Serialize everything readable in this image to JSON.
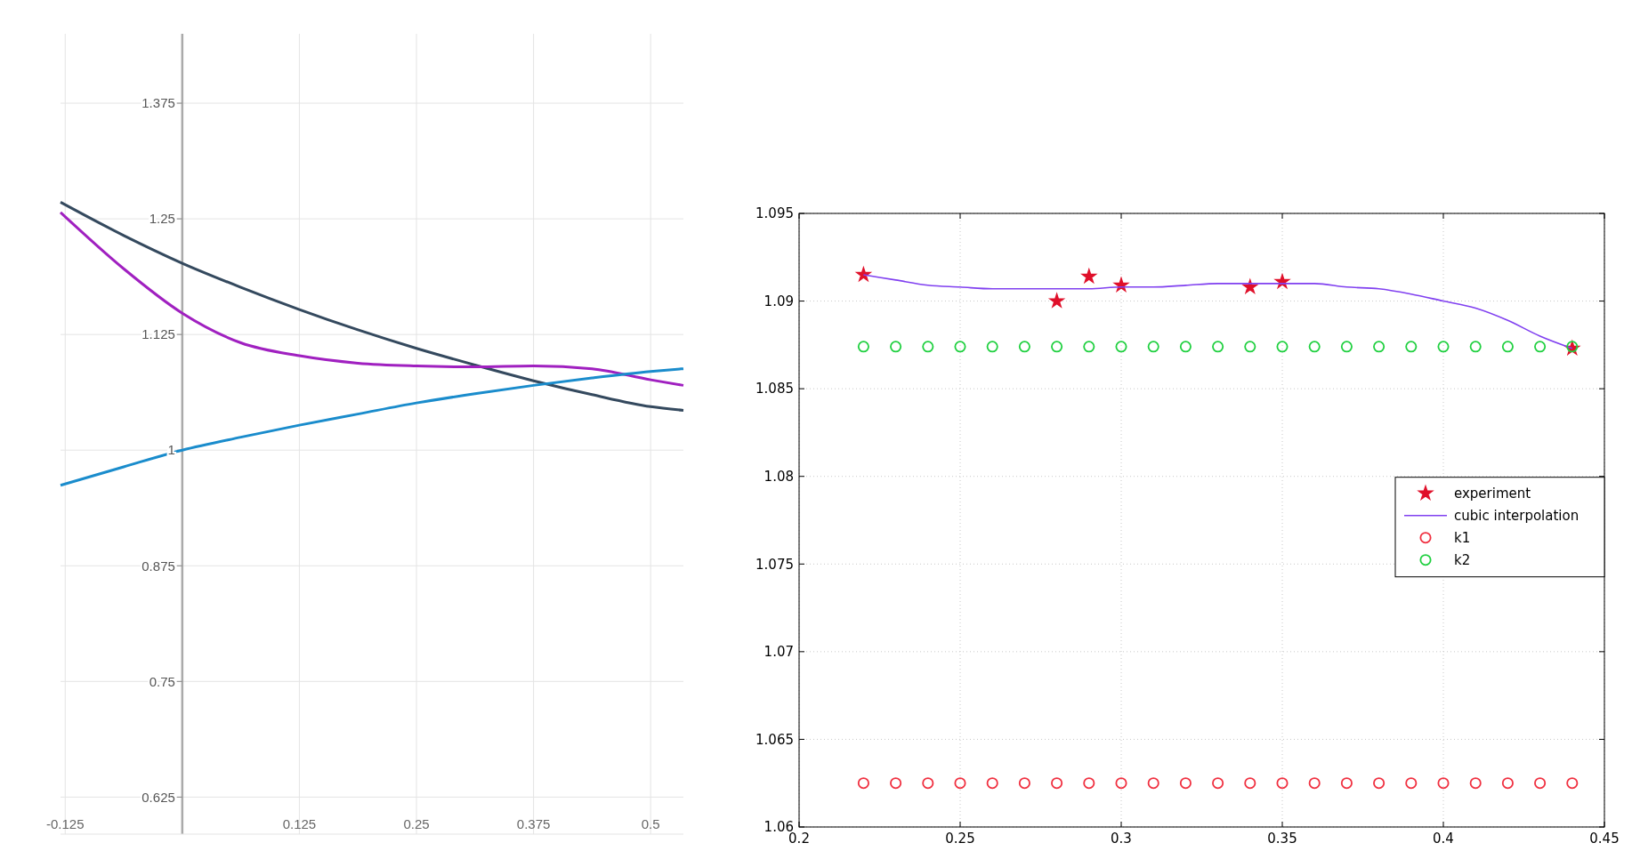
{
  "chart_data": [
    {
      "type": "line",
      "xlim": [
        -0.13,
        0.535
      ],
      "ylim": [
        0.585,
        1.45
      ],
      "xticks": [
        -0.125,
        0.125,
        0.25,
        0.375,
        0.5
      ],
      "yticks": [
        0.625,
        0.75,
        0.875,
        1,
        1.125,
        1.25,
        1.375
      ],
      "grid": true,
      "x": [
        -0.13,
        -0.0625,
        0,
        0.0625,
        0.125,
        0.1875,
        0.25,
        0.3125,
        0.375,
        0.4375,
        0.5,
        0.535
      ],
      "series": [
        {
          "color": "#34495e",
          "values": [
            1.268,
            1.232,
            1.202,
            1.176,
            1.152,
            1.13,
            1.11,
            1.092,
            1.075,
            1.06,
            1.047,
            1.043
          ]
        },
        {
          "color": "#a020c0",
          "values": [
            1.257,
            1.196,
            1.148,
            1.116,
            1.102,
            1.094,
            1.091,
            1.09,
            1.091,
            1.088,
            1.076,
            1.07
          ]
        },
        {
          "color": "#1a8ccc",
          "values": [
            0.962,
            0.982,
            1.0,
            1.014,
            1.027,
            1.039,
            1.051,
            1.061,
            1.07,
            1.078,
            1.085,
            1.088
          ]
        }
      ]
    },
    {
      "type": "scatter",
      "xlim": [
        0.2,
        0.45
      ],
      "ylim": [
        1.06,
        1.095
      ],
      "xticks": [
        0.2,
        0.25,
        0.3,
        0.35,
        0.4,
        0.45
      ],
      "yticks": [
        1.06,
        1.065,
        1.07,
        1.075,
        1.08,
        1.085,
        1.09,
        1.095
      ],
      "grid": true,
      "legend": "right",
      "x": [
        0.22,
        0.23,
        0.24,
        0.25,
        0.26,
        0.27,
        0.28,
        0.29,
        0.3,
        0.31,
        0.32,
        0.33,
        0.34,
        0.35,
        0.36,
        0.37,
        0.38,
        0.39,
        0.4,
        0.41,
        0.42,
        0.43,
        0.44
      ],
      "series": [
        {
          "name": "experiment",
          "marker": "star",
          "color": "#e0102a",
          "x": [
            0.22,
            0.28,
            0.29,
            0.3,
            0.34,
            0.35,
            0.44
          ],
          "values": [
            1.0915,
            1.09,
            1.0914,
            1.0909,
            1.0908,
            1.0911,
            1.0873
          ]
        },
        {
          "name": "cubic interpolation",
          "type": "line",
          "marker": "none",
          "color": "#8040f0",
          "values": [
            1.0915,
            1.0912,
            1.0909,
            1.0908,
            1.0907,
            1.0907,
            1.0907,
            1.0907,
            1.0908,
            1.0908,
            1.0909,
            1.091,
            1.091,
            1.091,
            1.091,
            1.0908,
            1.0907,
            1.0904,
            1.09,
            1.0896,
            1.0889,
            1.088,
            1.0873
          ]
        },
        {
          "name": "k1",
          "marker": "circle",
          "color": "#f03040",
          "values": [
            1.0625,
            1.0625,
            1.0625,
            1.0625,
            1.0625,
            1.0625,
            1.0625,
            1.0625,
            1.0625,
            1.0625,
            1.0625,
            1.0625,
            1.0625,
            1.0625,
            1.0625,
            1.0625,
            1.0625,
            1.0625,
            1.0625,
            1.0625,
            1.0625,
            1.0625,
            1.0625
          ]
        },
        {
          "name": "k2",
          "marker": "circle",
          "color": "#20d040",
          "values": [
            1.0874,
            1.0874,
            1.0874,
            1.0874,
            1.0874,
            1.0874,
            1.0874,
            1.0874,
            1.0874,
            1.0874,
            1.0874,
            1.0874,
            1.0874,
            1.0874,
            1.0874,
            1.0874,
            1.0874,
            1.0874,
            1.0874,
            1.0874,
            1.0874,
            1.0874,
            1.0874
          ]
        }
      ]
    }
  ]
}
